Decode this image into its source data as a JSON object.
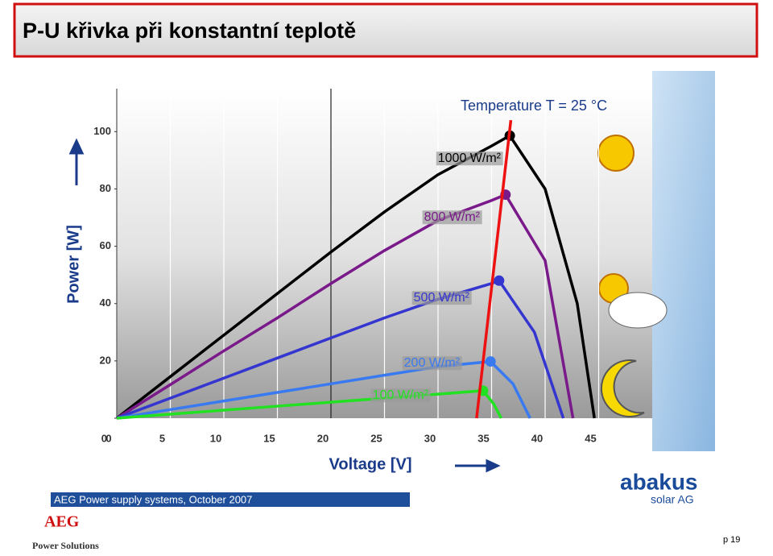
{
  "slide_title": "P-U křivka při konstantní teplotě",
  "chart_data": {
    "type": "line",
    "annotation": "Temperature T = 25 °C",
    "xlabel": "Voltage [V]",
    "ylabel": "Power [W]",
    "xlim": [
      0,
      50
    ],
    "ylim": [
      0,
      115
    ],
    "xticks": [
      0,
      5,
      10,
      15,
      20,
      25,
      30,
      35,
      40,
      45
    ],
    "yticks": [
      0,
      20,
      40,
      60,
      80,
      100
    ],
    "grid": true,
    "series": [
      {
        "name": "1000 W/m²",
        "color": "#000000",
        "x": [
          0,
          5,
          10,
          15,
          20,
          25,
          30,
          35,
          36.7,
          40,
          43,
          44.6
        ],
        "values": [
          0,
          14.5,
          29,
          43.5,
          58,
          72,
          85,
          95,
          98.6,
          80,
          40,
          0
        ]
      },
      {
        "name": "800 W/m²",
        "color": "#7a1a8a",
        "x": [
          0,
          5,
          10,
          15,
          20,
          25,
          30,
          35,
          36.3,
          40,
          42.6
        ],
        "values": [
          0,
          11.7,
          23.5,
          35,
          47,
          58.5,
          69,
          76,
          78,
          55,
          0
        ]
      },
      {
        "name": "500 W/m²",
        "color": "#3535d0",
        "x": [
          0,
          5,
          10,
          15,
          20,
          25,
          30,
          35,
          35.7,
          39,
          41.7
        ],
        "values": [
          0,
          7,
          14,
          21,
          28,
          35,
          41.5,
          47,
          48,
          30,
          0
        ]
      },
      {
        "name": "200 W/m²",
        "color": "#3a7af0",
        "x": [
          0,
          5,
          10,
          15,
          20,
          25,
          30,
          34.9,
          37,
          38.6
        ],
        "values": [
          0,
          3,
          6,
          9,
          12,
          15,
          18,
          19.8,
          12,
          0
        ]
      },
      {
        "name": "100 W/m²",
        "color": "#22e022",
        "x": [
          0,
          5,
          10,
          15,
          20,
          25,
          30,
          34.2,
          35.2,
          35.9
        ],
        "values": [
          0,
          1.4,
          2.8,
          4.2,
          5.6,
          7,
          8.4,
          9.6,
          5,
          0
        ]
      },
      {
        "color": "#ee1111",
        "x": [
          33.6,
          36.8
        ],
        "values": [
          0,
          104
        ]
      }
    ]
  },
  "footer": {
    "text": "AEG Power supply systems,  October 2007",
    "brand": "AEG",
    "brand_sub": "Power Solutions",
    "partner": "abakus",
    "partner_sub": "solar AG",
    "page": "p 19"
  }
}
